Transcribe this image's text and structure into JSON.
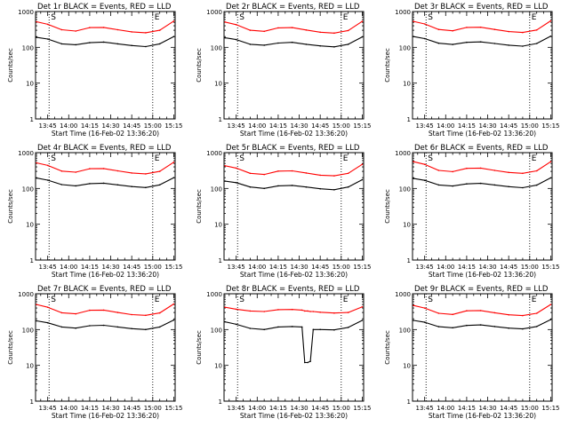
{
  "figure": {
    "xlabel": "Start Time (16-Feb-02 13:36:20)",
    "ylabel": "Counts/sec",
    "colors": {
      "events": "#000000",
      "lld": "#ff0000",
      "axes": "#000000"
    }
  },
  "chart_data": [
    {
      "type": "line",
      "title": "Det 1r BLACK = Events, RED = LLD",
      "xlabel": "Start Time (16-Feb-02 13:36:20)",
      "ylabel": "Counts/sec",
      "yscale": "log",
      "ylim": [
        1,
        1000
      ],
      "xlim": [
        "13:36:20",
        "15:16:00"
      ],
      "x_ticks": [
        "13:45",
        "14:00",
        "14:15",
        "14:30",
        "14:45",
        "15:00",
        "15:15"
      ],
      "y_ticks": [
        "1",
        "10",
        "100",
        "1000"
      ],
      "markers": {
        "S": "13:46",
        "E": "15:00"
      },
      "x": [
        "13:37",
        "13:45",
        "13:55",
        "14:05",
        "14:15",
        "14:25",
        "14:35",
        "14:45",
        "14:55",
        "15:05",
        "15:15"
      ],
      "series": [
        {
          "name": "Events",
          "color": "#000000",
          "values": [
            190,
            170,
            125,
            118,
            135,
            140,
            125,
            112,
            105,
            125,
            200
          ]
        },
        {
          "name": "LLD",
          "color": "#ff0000",
          "values": [
            520,
            440,
            310,
            285,
            355,
            360,
            310,
            270,
            255,
            300,
            540
          ]
        }
      ]
    },
    {
      "type": "line",
      "title": "Det 2r BLACK = Events, RED = LLD",
      "xlabel": "Start Time (16-Feb-02 13:36:20)",
      "ylabel": "Counts/sec",
      "yscale": "log",
      "ylim": [
        1,
        1000
      ],
      "xlim": [
        "13:36:20",
        "15:16:00"
      ],
      "x_ticks": [
        "13:45",
        "14:00",
        "14:15",
        "14:30",
        "14:45",
        "15:00",
        "15:15"
      ],
      "y_ticks": [
        "1",
        "10",
        "100",
        "1000"
      ],
      "markers": {
        "S": "13:46",
        "E": "15:00"
      },
      "x": [
        "13:37",
        "13:45",
        "13:55",
        "14:05",
        "14:15",
        "14:25",
        "14:35",
        "14:45",
        "14:55",
        "15:05",
        "15:15"
      ],
      "series": [
        {
          "name": "Events",
          "color": "#000000",
          "values": [
            185,
            165,
            122,
            115,
            132,
            138,
            122,
            110,
            103,
            122,
            195
          ]
        },
        {
          "name": "LLD",
          "color": "#ff0000",
          "values": [
            510,
            430,
            300,
            280,
            350,
            355,
            305,
            265,
            250,
            295,
            530
          ]
        }
      ]
    },
    {
      "type": "line",
      "title": "Det 3r BLACK = Events, RED = LLD",
      "xlabel": "Start Time (16-Feb-02 13:36:20)",
      "ylabel": "Counts/sec",
      "yscale": "log",
      "ylim": [
        1,
        1000
      ],
      "xlim": [
        "13:36:20",
        "15:16:00"
      ],
      "x_ticks": [
        "13:45",
        "14:00",
        "14:15",
        "14:30",
        "14:45",
        "15:00",
        "15:15"
      ],
      "y_ticks": [
        "1",
        "10",
        "100",
        "1000"
      ],
      "markers": {
        "S": "13:46",
        "E": "15:00"
      },
      "x": [
        "13:37",
        "13:45",
        "13:55",
        "14:05",
        "14:15",
        "14:25",
        "14:35",
        "14:45",
        "14:55",
        "15:05",
        "15:15"
      ],
      "series": [
        {
          "name": "Events",
          "color": "#000000",
          "values": [
            200,
            175,
            130,
            120,
            138,
            142,
            128,
            115,
            108,
            128,
            205
          ]
        },
        {
          "name": "LLD",
          "color": "#ff0000",
          "values": [
            530,
            450,
            315,
            290,
            360,
            365,
            315,
            275,
            260,
            305,
            550
          ]
        }
      ]
    },
    {
      "type": "line",
      "title": "Det 4r BLACK = Events, RED = LLD",
      "xlabel": "Start Time (16-Feb-02 13:36:20)",
      "ylabel": "Counts/sec",
      "yscale": "log",
      "ylim": [
        1,
        1000
      ],
      "xlim": [
        "13:36:20",
        "15:16:00"
      ],
      "x_ticks": [
        "13:45",
        "14:00",
        "14:15",
        "14:30",
        "14:45",
        "15:00",
        "15:15"
      ],
      "y_ticks": [
        "1",
        "10",
        "100",
        "1000"
      ],
      "markers": {
        "S": "13:46",
        "E": "15:00"
      },
      "x": [
        "13:37",
        "13:45",
        "13:55",
        "14:05",
        "14:15",
        "14:25",
        "14:35",
        "14:45",
        "14:55",
        "15:05",
        "15:15"
      ],
      "series": [
        {
          "name": "Events",
          "color": "#000000",
          "values": [
            195,
            170,
            128,
            118,
            136,
            140,
            126,
            113,
            106,
            126,
            200
          ]
        },
        {
          "name": "LLD",
          "color": "#ff0000",
          "values": [
            520,
            440,
            305,
            285,
            355,
            360,
            310,
            270,
            255,
            300,
            540
          ]
        }
      ]
    },
    {
      "type": "line",
      "title": "Det 5r BLACK = Events, RED = LLD",
      "xlabel": "Start Time (16-Feb-02 13:36:20)",
      "ylabel": "Counts/sec",
      "yscale": "log",
      "ylim": [
        1,
        1000
      ],
      "xlim": [
        "13:36:20",
        "15:16:00"
      ],
      "x_ticks": [
        "13:45",
        "14:00",
        "14:15",
        "14:30",
        "14:45",
        "15:00",
        "15:15"
      ],
      "y_ticks": [
        "1",
        "10",
        "100",
        "1000"
      ],
      "markers": {
        "S": "13:46",
        "E": "15:00"
      },
      "x": [
        "13:37",
        "13:45",
        "13:55",
        "14:05",
        "14:15",
        "14:25",
        "14:35",
        "14:45",
        "14:55",
        "15:05",
        "15:15"
      ],
      "series": [
        {
          "name": "Events",
          "color": "#000000",
          "values": [
            160,
            145,
            110,
            100,
            118,
            122,
            110,
            98,
            92,
            110,
            175
          ]
        },
        {
          "name": "LLD",
          "color": "#ff0000",
          "values": [
            430,
            370,
            265,
            245,
            305,
            310,
            270,
            235,
            225,
            265,
            470
          ]
        }
      ]
    },
    {
      "type": "line",
      "title": "Det 6r BLACK = Events, RED = LLD",
      "xlabel": "Start Time (16-Feb-02 13:36:20)",
      "ylabel": "Counts/sec",
      "yscale": "log",
      "ylim": [
        1,
        1000
      ],
      "xlim": [
        "13:36:20",
        "15:16:00"
      ],
      "x_ticks": [
        "13:45",
        "14:00",
        "14:15",
        "14:30",
        "14:45",
        "15:00",
        "15:15"
      ],
      "y_ticks": [
        "1",
        "10",
        "100",
        "1000"
      ],
      "markers": {
        "S": "13:46",
        "E": "15:00"
      },
      "x": [
        "13:37",
        "13:45",
        "13:55",
        "14:05",
        "14:15",
        "14:25",
        "14:35",
        "14:45",
        "14:55",
        "15:05",
        "15:15"
      ],
      "series": [
        {
          "name": "Events",
          "color": "#000000",
          "values": [
            190,
            168,
            125,
            117,
            134,
            139,
            125,
            112,
            105,
            124,
            198
          ]
        },
        {
          "name": "LLD",
          "color": "#ff0000",
          "values": [
            560,
            470,
            320,
            295,
            365,
            370,
            320,
            280,
            265,
            310,
            560
          ]
        }
      ]
    },
    {
      "type": "line",
      "title": "Det 7r BLACK = Events, RED = LLD",
      "xlabel": "Start Time (16-Feb-02 13:36:20)",
      "ylabel": "Counts/sec",
      "yscale": "log",
      "ylim": [
        1,
        1000
      ],
      "xlim": [
        "13:36:20",
        "15:16:00"
      ],
      "x_ticks": [
        "13:45",
        "14:00",
        "14:15",
        "14:30",
        "14:45",
        "15:00",
        "15:15"
      ],
      "y_ticks": [
        "1",
        "10",
        "100",
        "1000"
      ],
      "markers": {
        "S": "13:46",
        "E": "15:00"
      },
      "x": [
        "13:37",
        "13:45",
        "13:55",
        "14:05",
        "14:15",
        "14:25",
        "14:35",
        "14:45",
        "14:55",
        "15:05",
        "15:15"
      ],
      "series": [
        {
          "name": "Events",
          "color": "#000000",
          "values": [
            175,
            155,
            118,
            110,
            128,
            132,
            118,
            106,
            100,
            118,
            185
          ]
        },
        {
          "name": "LLD",
          "color": "#ff0000",
          "values": [
            500,
            420,
            295,
            275,
            345,
            350,
            300,
            262,
            250,
            292,
            520
          ]
        }
      ]
    },
    {
      "type": "line",
      "title": "Det 8r BLACK = Events, RED = LLD",
      "xlabel": "Start Time (16-Feb-02 13:36:20)",
      "ylabel": "Counts/sec",
      "yscale": "log",
      "ylim": [
        1,
        1000
      ],
      "xlim": [
        "13:36:20",
        "15:16:00"
      ],
      "x_ticks": [
        "13:45",
        "14:00",
        "14:15",
        "14:30",
        "14:45",
        "15:00",
        "15:15"
      ],
      "y_ticks": [
        "1",
        "10",
        "100",
        "1000"
      ],
      "markers": {
        "S": "13:46",
        "E": "15:00"
      },
      "x": [
        "13:37",
        "13:45",
        "13:55",
        "14:05",
        "14:15",
        "14:25",
        "14:32",
        "14:34",
        "14:36",
        "14:38",
        "14:40",
        "14:45",
        "14:55",
        "15:05",
        "15:15"
      ],
      "series": [
        {
          "name": "Events",
          "color": "#000000",
          "values": [
            165,
            140,
            108,
            100,
            118,
            122,
            118,
            12,
            12,
            13,
            100,
            100,
            98,
            115,
            180
          ]
        },
        {
          "name": "LLD",
          "color": "#ff0000",
          "values": [
            420,
            370,
            330,
            320,
            360,
            365,
            350,
            330,
            330,
            320,
            320,
            305,
            290,
            300,
            430
          ]
        }
      ]
    },
    {
      "type": "line",
      "title": "Det 9r BLACK = Events, RED = LLD",
      "xlabel": "Start Time (16-Feb-02 13:36:20)",
      "ylabel": "Counts/sec",
      "yscale": "log",
      "ylim": [
        1,
        1000
      ],
      "xlim": [
        "13:36:20",
        "15:16:00"
      ],
      "x_ticks": [
        "13:45",
        "14:00",
        "14:15",
        "14:30",
        "14:45",
        "15:00",
        "15:15"
      ],
      "y_ticks": [
        "1",
        "10",
        "100",
        "1000"
      ],
      "markers": {
        "S": "13:46",
        "E": "15:00"
      },
      "x": [
        "13:37",
        "13:45",
        "13:55",
        "14:05",
        "14:15",
        "14:25",
        "14:35",
        "14:45",
        "14:55",
        "15:05",
        "15:15"
      ],
      "series": [
        {
          "name": "Events",
          "color": "#000000",
          "values": [
            180,
            160,
            120,
            112,
            130,
            135,
            122,
            110,
            104,
            122,
            190
          ]
        },
        {
          "name": "LLD",
          "color": "#ff0000",
          "values": [
            470,
            400,
            285,
            265,
            335,
            340,
            295,
            258,
            245,
            285,
            500
          ]
        }
      ]
    }
  ]
}
